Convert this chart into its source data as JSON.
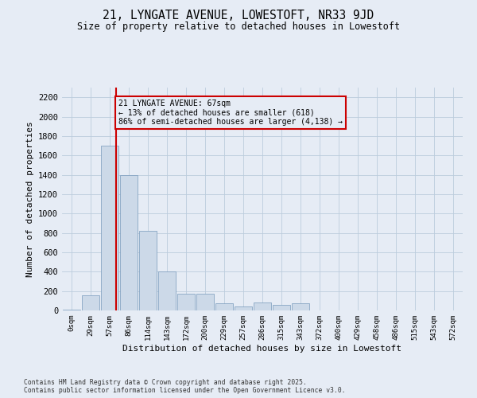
{
  "title": "21, LYNGATE AVENUE, LOWESTOFT, NR33 9JD",
  "subtitle": "Size of property relative to detached houses in Lowestoft",
  "xlabel": "Distribution of detached houses by size in Lowestoft",
  "ylabel": "Number of detached properties",
  "bar_color": "#ccd9e8",
  "bar_edge_color": "#7799bb",
  "grid_color": "#bbccdd",
  "background_color": "#e6ecf5",
  "property_line_color": "#cc0000",
  "annotation_text": "21 LYNGATE AVENUE: 67sqm\n← 13% of detached houses are smaller (618)\n86% of semi-detached houses are larger (4,138) →",
  "annotation_box_color": "#cc0000",
  "categories": [
    "0sqm",
    "29sqm",
    "57sqm",
    "86sqm",
    "114sqm",
    "143sqm",
    "172sqm",
    "200sqm",
    "229sqm",
    "257sqm",
    "286sqm",
    "315sqm",
    "343sqm",
    "372sqm",
    "400sqm",
    "429sqm",
    "458sqm",
    "486sqm",
    "515sqm",
    "543sqm",
    "572sqm"
  ],
  "bar_heights": [
    10,
    155,
    1700,
    1400,
    820,
    400,
    170,
    170,
    70,
    40,
    80,
    60,
    75,
    0,
    0,
    0,
    0,
    0,
    0,
    0,
    0
  ],
  "ylim": [
    0,
    2300
  ],
  "yticks": [
    0,
    200,
    400,
    600,
    800,
    1000,
    1200,
    1400,
    1600,
    1800,
    2000,
    2200
  ],
  "footer_text": "Contains HM Land Registry data © Crown copyright and database right 2025.\nContains public sector information licensed under the Open Government Licence v3.0.",
  "figsize": [
    6.0,
    5.0
  ],
  "dpi": 100
}
